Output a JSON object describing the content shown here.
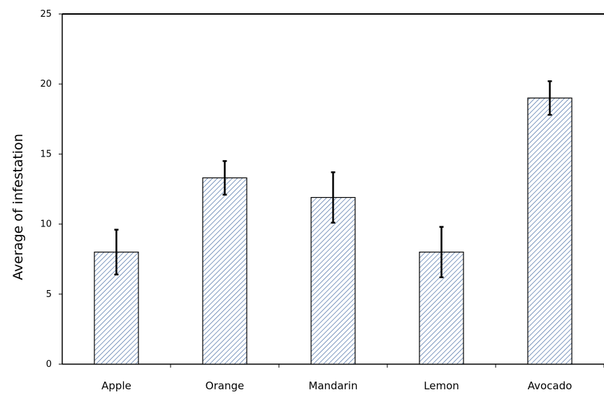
{
  "chart_data": {
    "type": "bar",
    "title": "",
    "xlabel": "",
    "ylabel": "Average of infestation",
    "categories": [
      "Apple",
      "Orange",
      "Mandarin",
      "Lemon",
      "Avocado"
    ],
    "series": [
      {
        "values": [
          8.0,
          13.3,
          11.9,
          8.0,
          19.0
        ],
        "error": [
          1.6,
          1.2,
          1.8,
          1.8,
          1.2
        ]
      }
    ],
    "ylim": [
      0,
      25
    ],
    "yticks": [
      0,
      5,
      10,
      15,
      20,
      25
    ],
    "grid": false,
    "legend": "none",
    "bar_fill": "hatched",
    "colors": {
      "bar_hatch": "#4a6fa5",
      "bar_background": "#ffffff",
      "axis": "#000000",
      "error_bar": "#000000"
    }
  }
}
